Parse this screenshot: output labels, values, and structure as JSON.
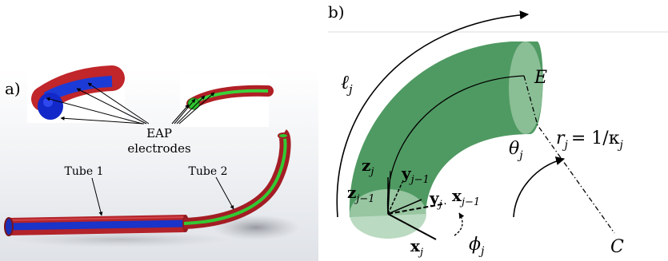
{
  "panel_a": {
    "label": "a)",
    "callout_line1": "EAP",
    "callout_line2": "electrodes",
    "tube1_label": "Tube 1",
    "tube2_label": "Tube 2"
  },
  "panel_b": {
    "label": "b)",
    "arc_length_label": "ℓ",
    "arc_length_sub": "j",
    "end_label": "E",
    "center_label": "C",
    "theta_label": "θ",
    "theta_sub": "j",
    "phi_label": "ϕ",
    "phi_sub": "j",
    "radius_label": "r",
    "radius_sub": "j",
    "radius_eq": "= 1/κ",
    "radius_eq_sub": "j",
    "z_j": "z",
    "z_j_sub": "j",
    "z_jm1": "z",
    "z_jm1_sub": "j−1",
    "y_j": "y",
    "y_j_sub": "j",
    "y_jm1": "y",
    "y_jm1_sub": "j−1",
    "x_j": "x",
    "x_j_sub": "j",
    "x_jm1": "x",
    "x_jm1_sub": "j−1"
  },
  "colors": {
    "tube_red": "#c0262a",
    "tube_blue": "#1c3bd6",
    "tube_green": "#2fc42f",
    "segment_green": "#4f9a62"
  }
}
